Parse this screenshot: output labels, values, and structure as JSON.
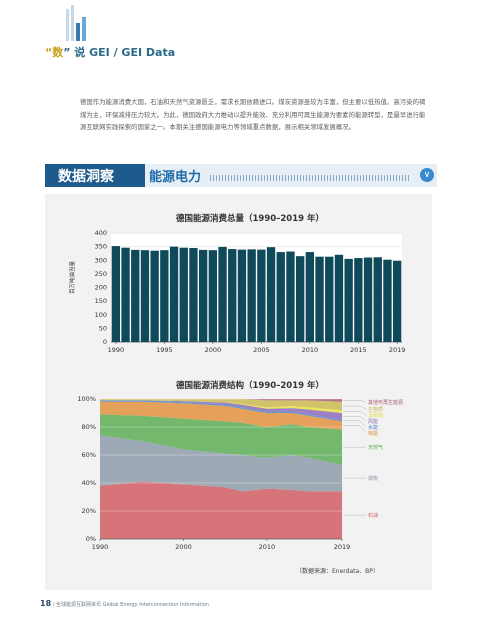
{
  "header": {
    "title_prefix": "“",
    "title_num": "数",
    "title_suffix": "” 说 GEI / GEI Data"
  },
  "intro": "德国作为能源消费大国，石油和天然气资源匮乏，需求长期依赖进口。煤炭资源虽较为丰富，但主要以低热值、高污染的褐煤为主，环保减排压力较大。为此，德国政府大力推动以提升能效、充分利用可再生能源为要素的能源转型，是最早进行能源互联网实践探索的国家之一。本期关注德国能源电力等领域重点数据，展示相关领域发展概况。",
  "section": {
    "label": "数据洞察",
    "sub": "能源电力"
  },
  "source": "（数据来源：Enerdata、BP）",
  "footer": {
    "page": "18",
    "text": "/ 全球能源互联网资讯  Global Energy Interconnection Information"
  },
  "colors": {
    "accent": "#1e5a8c",
    "bar": "#0e4a5a",
    "petroleum": "#d05c62",
    "coal": "#8c9aa8",
    "gas": "#5aab52",
    "nuclear": "#e0903c",
    "hydro": "#4a82c8",
    "wind": "#8a6ab8",
    "biomass": "#c9b850",
    "solar": "#e8e040",
    "other_renew": "#a85878"
  },
  "chart_data": [
    {
      "type": "bar",
      "title": "德国能源消费总量（1990–2019 年）",
      "ylabel": "百万吨油当量",
      "x": [
        1990,
        1991,
        1992,
        1993,
        1994,
        1995,
        1996,
        1997,
        1998,
        1999,
        2000,
        2001,
        2002,
        2003,
        2004,
        2005,
        2006,
        2007,
        2008,
        2009,
        2010,
        2011,
        2012,
        2013,
        2014,
        2015,
        2016,
        2017,
        2018,
        2019
      ],
      "values": [
        352,
        346,
        338,
        337,
        335,
        337,
        350,
        346,
        345,
        338,
        337,
        349,
        341,
        339,
        340,
        339,
        348,
        330,
        332,
        315,
        330,
        313,
        313,
        320,
        305,
        308,
        310,
        311,
        302,
        298
      ],
      "ylim": [
        0,
        400
      ],
      "yticks": [
        0,
        50,
        100,
        150,
        200,
        250,
        300,
        350,
        400
      ],
      "xticks": [
        1990,
        1995,
        2000,
        2005,
        2010,
        2015,
        2019
      ],
      "grid": true
    },
    {
      "type": "area",
      "title": "德国能源消费结构（1990–2019 年）",
      "x": [
        1990,
        1995,
        2000,
        2005,
        2007,
        2010,
        2013,
        2015,
        2019
      ],
      "xticks": [
        1990,
        2000,
        2010,
        2019
      ],
      "yticks": [
        "0%",
        "20%",
        "40%",
        "60%",
        "80%",
        "100%"
      ],
      "ylim": [
        0,
        100
      ],
      "series": [
        {
          "name": "石油",
          "values": [
            38,
            41,
            39,
            37,
            34,
            36,
            35,
            34,
            34
          ]
        },
        {
          "name": "煤炭",
          "values": [
            36,
            29,
            25,
            24,
            26,
            22,
            25,
            24,
            19
          ]
        },
        {
          "name": "天然气",
          "values": [
            15,
            18,
            22,
            23,
            23,
            22,
            22,
            22,
            25
          ]
        },
        {
          "name": "核能",
          "values": [
            9,
            10,
            11,
            11,
            10,
            10,
            8,
            8,
            6
          ]
        },
        {
          "name": "水能",
          "values": [
            1,
            1,
            1,
            1,
            1,
            1,
            1,
            1,
            1
          ]
        },
        {
          "name": "风能",
          "values": [
            0,
            0,
            0.5,
            1.5,
            2,
            2,
            2.5,
            3.5,
            5
          ]
        },
        {
          "name": "太阳能",
          "values": [
            0,
            0,
            0,
            0.2,
            0.5,
            1,
            1.5,
            1.5,
            2
          ]
        },
        {
          "name": "生物质",
          "values": [
            1,
            1,
            1.5,
            2.3,
            3.5,
            5,
            4,
            5,
            6
          ]
        },
        {
          "name": "其他可再生能源",
          "values": [
            0,
            0,
            0,
            0,
            0,
            1,
            1,
            1,
            2
          ]
        }
      ]
    }
  ]
}
